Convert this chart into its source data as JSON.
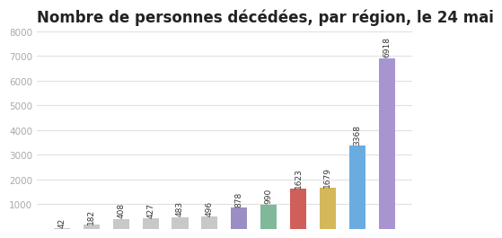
{
  "title": "Nombre de personnes décédées, par région, le 24 mai",
  "values": [
    42,
    182,
    408,
    427,
    483,
    496,
    878,
    990,
    1623,
    1679,
    3368,
    6918
  ],
  "labels": [
    "42",
    "182",
    "408",
    "427",
    "483",
    "496",
    "878",
    "990",
    "1623",
    "1679",
    "3368",
    "6918"
  ],
  "colors": [
    "#c8c8c8",
    "#c8c8c8",
    "#c8c8c8",
    "#c8c8c8",
    "#c8c8c8",
    "#c8c8c8",
    "#9b8ec4",
    "#7fb89a",
    "#d05f5a",
    "#d4b85a",
    "#6aace0",
    "#a895d0"
  ],
  "ylim": [
    0,
    8000
  ],
  "yticks": [
    1000,
    2000,
    3000,
    4000,
    5000,
    6000,
    7000,
    8000
  ],
  "background_color": "#ffffff",
  "grid_color": "#e0e0e0",
  "title_fontsize": 12,
  "label_fontsize": 6.5,
  "bar_width": 0.55
}
